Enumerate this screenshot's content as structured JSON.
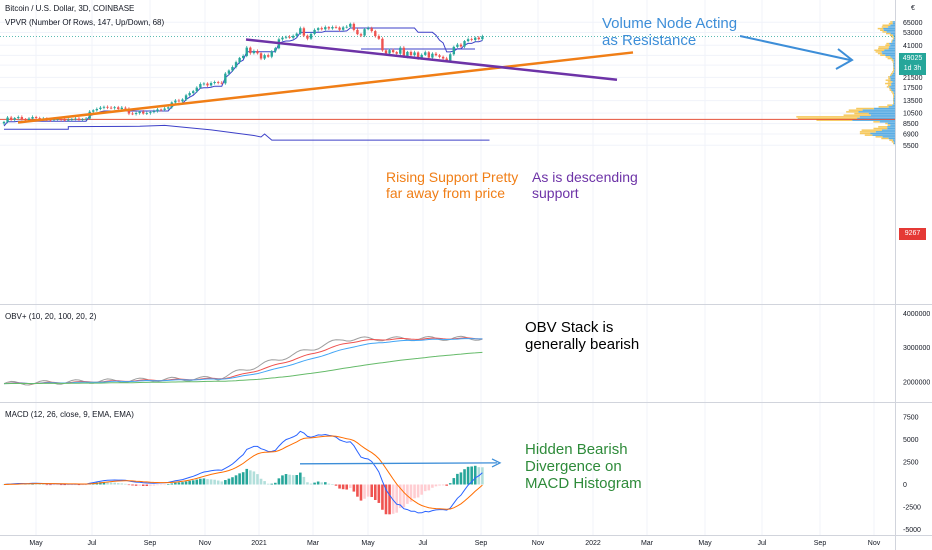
{
  "header": {
    "title": "Bitcoin / U.S. Dollar, 3D, COINBASE",
    "vpvr": "VPVR (Number Of Rows, 147, Up/Down, 68)",
    "obv": "OBV+ (10, 20, 100, 20, 2)",
    "macd": "MACD (12, 26, close, 9, EMA, EMA)"
  },
  "annotations": {
    "volume_line1": "Volume Node Acting",
    "volume_line2": "as Resistance",
    "rising_line1": "Rising Support Pretty",
    "rising_line2": "far away from price",
    "desc_line1": "As is descending",
    "desc_line2": "support",
    "obv_line1": "OBV Stack is",
    "obv_line2": "generally bearish",
    "macd_line1": "Hidden Bearish",
    "macd_line2": "Divergence on",
    "macd_line3": "MACD Histogram"
  },
  "price_tag": {
    "price": "49025",
    "countdown": "1d 3h",
    "level": "9267"
  },
  "colors": {
    "up": "#26a69a",
    "down": "#ef5350",
    "blue_band": "#3d40c8",
    "rising": "#f07e16",
    "descending": "#6d33a7",
    "arrow": "#3d8ed8",
    "horizontal": "#e5533b",
    "vp_up": "#49a4e0",
    "vp_down": "#f5c34d"
  },
  "chart_data": [
    {
      "type": "candlestick",
      "title": "Bitcoin / U.S. Dollar, 3D, COINBASE",
      "x_tick_labels": [
        "May",
        "Jul",
        "Sep",
        "Nov",
        "2021",
        "Mar",
        "May",
        "Jul",
        "Sep",
        "Nov",
        "2022",
        "Mar",
        "May",
        "Jul",
        "Sep",
        "Nov"
      ],
      "y_tick_labels": [
        "65000",
        "53000",
        "41000",
        "33500",
        "27500",
        "21500",
        "17500",
        "13500",
        "10500",
        "8500",
        "6900",
        "5500"
      ],
      "y_scale": "log",
      "current_price": 49025,
      "horizontal_level": 9267,
      "close_series": [
        8800,
        9600,
        9200,
        9500,
        9700,
        9300,
        9100,
        9400,
        9700,
        9500,
        9200,
        9400,
        9200,
        9100,
        9300,
        9300,
        9200,
        9100,
        9200,
        9300,
        9400,
        9200,
        9300,
        9400,
        10800,
        11100,
        11400,
        11700,
        11900,
        11700,
        11600,
        11800,
        11400,
        11700,
        11500,
        10400,
        10300,
        10500,
        10800,
        10400,
        10500,
        10700,
        10900,
        11300,
        11200,
        11500,
        11800,
        13000,
        13500,
        13300,
        13800,
        15000,
        15700,
        16300,
        17500,
        18800,
        19000,
        18300,
        19200,
        19600,
        19300,
        19100,
        23200,
        24700,
        26500,
        29200,
        31800,
        33100,
        39100,
        35000,
        36500,
        34900,
        31400,
        33600,
        32600,
        36300,
        38600,
        46200,
        47800,
        48500,
        47700,
        49500,
        51800,
        57700,
        49700,
        46800,
        51500,
        55800,
        57800,
        56500,
        59000,
        57500,
        59100,
        58500,
        56000,
        58700,
        59400,
        63000,
        55800,
        51200,
        49800,
        56600,
        57800,
        54500,
        49300,
        46700,
        37000,
        34800,
        37200,
        35700,
        34600,
        39000,
        32600,
        35900,
        33600,
        35500,
        31600,
        33800,
        35600,
        32000,
        34600,
        33500,
        32500,
        31400,
        29900,
        34200,
        39700,
        41500,
        40000,
        44600,
        46300,
        45600,
        47800,
        46300,
        49025
      ],
      "overlay_lines": [
        "rising support",
        "descending support",
        "stepped volume band",
        "volume profile histogram"
      ]
    },
    {
      "type": "line",
      "title": "OBV+ (10, 20, 100, 20, 2)",
      "y_tick_labels": [
        "4000000",
        "3000000",
        "2000000"
      ],
      "series": []
    },
    {
      "type": "bar",
      "title": "MACD (12, 26, close, 9, EMA, EMA)",
      "y_tick_labels": [
        "7500",
        "5000",
        "2500",
        "0",
        "-2500",
        "-5000"
      ],
      "series": []
    }
  ]
}
